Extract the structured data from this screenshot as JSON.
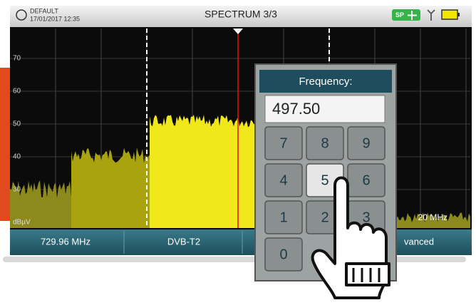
{
  "status_bar": {
    "profile": "DEFAULT",
    "datetime": "17/01/2017 12:35",
    "title": "SPECTRUM 3/3",
    "badge": "SP"
  },
  "spectrum": {
    "y_labels": [
      "70",
      "60",
      "50",
      "40",
      "30"
    ],
    "unit": "dBµV",
    "span": "20 MHz"
  },
  "bottom_bar": {
    "items": [
      "729.96 MHz",
      "DVB-T2",
      "vanced"
    ]
  },
  "keypad": {
    "title": "Frequency:",
    "entry": "497.50",
    "keys": [
      "7",
      "8",
      "9",
      "4",
      "5",
      "6",
      "1",
      "2",
      "3",
      "0"
    ]
  }
}
